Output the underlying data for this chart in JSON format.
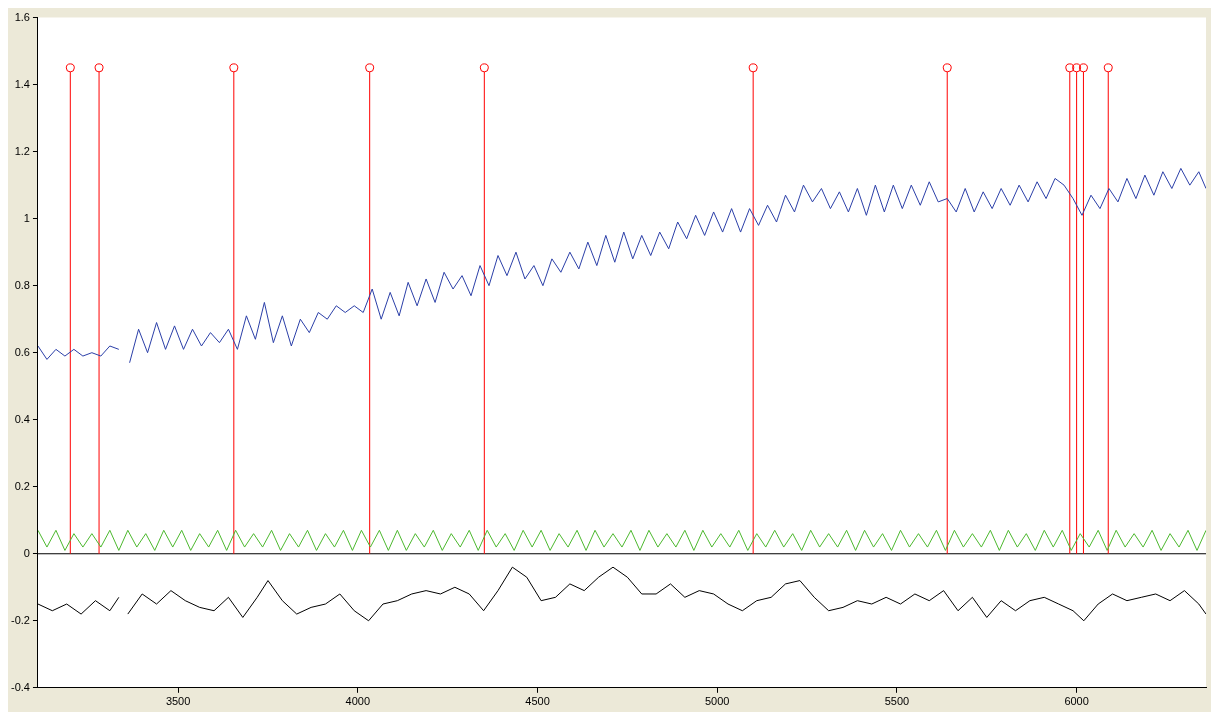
{
  "chart_data": {
    "type": "line",
    "xlim": [
      3110,
      6360
    ],
    "xticks": [
      3500,
      4000,
      4500,
      5000,
      5500,
      6000
    ],
    "ylim": [
      -0.4,
      1.6
    ],
    "yticks": [
      -0.4,
      -0.2,
      0,
      0.2,
      0.4,
      0.6,
      0.8,
      1,
      1.2,
      1.4,
      1.6
    ],
    "grid": false,
    "legend": false,
    "ref_lines": [
      {
        "axis": "y",
        "value": 0,
        "color": "#000000"
      }
    ],
    "series": [
      {
        "color": "#2b3fa8",
        "marker": "none",
        "x": [
          3110,
          3135,
          3160,
          3185,
          3210,
          3235,
          3260,
          3285,
          3310,
          3335,
          3350,
          3365,
          3390,
          3415,
          3440,
          3465,
          3490,
          3515,
          3540,
          3565,
          3590,
          3615,
          3640,
          3665,
          3690,
          3715,
          3740,
          3765,
          3790,
          3815,
          3840,
          3865,
          3890,
          3915,
          3940,
          3965,
          3990,
          4015,
          4040,
          4065,
          4090,
          4115,
          4140,
          4165,
          4190,
          4215,
          4240,
          4265,
          4290,
          4315,
          4340,
          4365,
          4390,
          4415,
          4440,
          4465,
          4490,
          4515,
          4540,
          4565,
          4590,
          4615,
          4640,
          4665,
          4690,
          4715,
          4740,
          4765,
          4790,
          4815,
          4840,
          4865,
          4890,
          4915,
          4940,
          4965,
          4990,
          5015,
          5040,
          5065,
          5090,
          5115,
          5140,
          5165,
          5190,
          5215,
          5240,
          5265,
          5290,
          5315,
          5340,
          5365,
          5390,
          5415,
          5440,
          5465,
          5490,
          5515,
          5540,
          5565,
          5590,
          5615,
          5640,
          5665,
          5690,
          5715,
          5740,
          5765,
          5790,
          5815,
          5840,
          5865,
          5890,
          5915,
          5940,
          5965,
          5990,
          6015,
          6040,
          6065,
          6090,
          6115,
          6140,
          6165,
          6190,
          6215,
          6240,
          6265,
          6290,
          6315,
          6340,
          6360
        ],
        "values": [
          0.62,
          0.58,
          0.61,
          0.59,
          0.61,
          0.59,
          0.6,
          0.59,
          0.62,
          0.61,
          null,
          0.57,
          0.67,
          0.6,
          0.69,
          0.61,
          0.68,
          0.61,
          0.67,
          0.62,
          0.66,
          0.63,
          0.67,
          0.61,
          0.71,
          0.64,
          0.75,
          0.63,
          0.71,
          0.62,
          0.7,
          0.66,
          0.72,
          0.7,
          0.74,
          0.72,
          0.74,
          0.72,
          0.79,
          0.7,
          0.78,
          0.71,
          0.81,
          0.74,
          0.82,
          0.75,
          0.84,
          0.79,
          0.83,
          0.77,
          0.86,
          0.8,
          0.89,
          0.83,
          0.9,
          0.82,
          0.86,
          0.8,
          0.88,
          0.84,
          0.9,
          0.85,
          0.93,
          0.86,
          0.95,
          0.87,
          0.96,
          0.88,
          0.95,
          0.89,
          0.96,
          0.91,
          0.99,
          0.94,
          1.01,
          0.95,
          1.02,
          0.96,
          1.03,
          0.96,
          1.03,
          0.98,
          1.04,
          0.99,
          1.07,
          1.02,
          1.1,
          1.05,
          1.09,
          1.03,
          1.08,
          1.02,
          1.09,
          1.01,
          1.1,
          1.02,
          1.1,
          1.03,
          1.1,
          1.04,
          1.11,
          1.05,
          1.06,
          1.02,
          1.09,
          1.02,
          1.08,
          1.03,
          1.09,
          1.04,
          1.1,
          1.05,
          1.11,
          1.06,
          1.12,
          1.1,
          1.06,
          1.01,
          1.07,
          1.03,
          1.09,
          1.05,
          1.12,
          1.06,
          1.13,
          1.07,
          1.14,
          1.09,
          1.15,
          1.1,
          1.14,
          1.09
        ]
      },
      {
        "color": "#4cb82e",
        "marker": "none",
        "x": [
          3110,
          3135,
          3160,
          3185,
          3210,
          3235,
          3260,
          3285,
          3310,
          3335,
          3360,
          3385,
          3410,
          3435,
          3460,
          3485,
          3510,
          3535,
          3560,
          3585,
          3610,
          3635,
          3660,
          3685,
          3710,
          3735,
          3760,
          3785,
          3810,
          3835,
          3860,
          3885,
          3910,
          3935,
          3960,
          3985,
          4010,
          4035,
          4060,
          4085,
          4110,
          4135,
          4160,
          4185,
          4210,
          4235,
          4260,
          4285,
          4310,
          4335,
          4360,
          4385,
          4410,
          4435,
          4460,
          4485,
          4510,
          4535,
          4560,
          4585,
          4610,
          4635,
          4660,
          4685,
          4710,
          4735,
          4760,
          4785,
          4810,
          4835,
          4860,
          4885,
          4910,
          4935,
          4960,
          4985,
          5010,
          5035,
          5060,
          5085,
          5110,
          5135,
          5160,
          5185,
          5210,
          5235,
          5260,
          5285,
          5310,
          5335,
          5360,
          5385,
          5410,
          5435,
          5460,
          5485,
          5510,
          5535,
          5560,
          5585,
          5610,
          5635,
          5660,
          5685,
          5710,
          5735,
          5760,
          5785,
          5810,
          5835,
          5860,
          5885,
          5910,
          5935,
          5960,
          5985,
          6010,
          6035,
          6060,
          6085,
          6110,
          6135,
          6160,
          6185,
          6210,
          6235,
          6260,
          6285,
          6310,
          6335,
          6360
        ],
        "values": [
          0.07,
          0.02,
          0.07,
          0.01,
          0.06,
          0.02,
          0.06,
          0.02,
          0.07,
          0.01,
          0.07,
          0.02,
          0.06,
          0.01,
          0.07,
          0.02,
          0.07,
          0.01,
          0.06,
          0.02,
          0.07,
          0.01,
          0.07,
          0.02,
          0.06,
          0.02,
          0.07,
          0.01,
          0.06,
          0.02,
          0.07,
          0.01,
          0.06,
          0.02,
          0.07,
          0.01,
          0.07,
          0.02,
          0.07,
          0.01,
          0.07,
          0.01,
          0.06,
          0.02,
          0.07,
          0.01,
          0.06,
          0.02,
          0.07,
          0.01,
          0.07,
          0.02,
          0.06,
          0.01,
          0.07,
          0.02,
          0.07,
          0.01,
          0.06,
          0.02,
          0.07,
          0.01,
          0.07,
          0.02,
          0.06,
          0.02,
          0.07,
          0.01,
          0.07,
          0.02,
          0.06,
          0.02,
          0.07,
          0.01,
          0.07,
          0.02,
          0.06,
          0.02,
          0.07,
          0.01,
          0.06,
          0.02,
          0.07,
          0.02,
          0.06,
          0.01,
          0.07,
          0.02,
          0.06,
          0.02,
          0.07,
          0.01,
          0.07,
          0.02,
          0.06,
          0.01,
          0.07,
          0.02,
          0.06,
          0.02,
          0.07,
          0.01,
          0.07,
          0.02,
          0.06,
          0.02,
          0.07,
          0.01,
          0.07,
          0.02,
          0.06,
          0.01,
          0.07,
          0.02,
          0.07,
          0.01,
          0.06,
          0.02,
          0.07,
          0.01,
          0.07,
          0.02,
          0.06,
          0.02,
          0.07,
          0.01,
          0.06,
          0.02,
          0.07,
          0.01,
          0.07
        ]
      },
      {
        "color": "#000000",
        "marker": "none",
        "x": [
          3110,
          3150,
          3190,
          3230,
          3270,
          3310,
          3335,
          3350,
          3360,
          3400,
          3440,
          3480,
          3520,
          3560,
          3600,
          3640,
          3680,
          3720,
          3750,
          3790,
          3830,
          3870,
          3910,
          3950,
          3990,
          4030,
          4070,
          4110,
          4150,
          4190,
          4230,
          4270,
          4310,
          4350,
          4390,
          4430,
          4470,
          4510,
          4550,
          4590,
          4630,
          4670,
          4710,
          4750,
          4790,
          4830,
          4870,
          4910,
          4950,
          4990,
          5030,
          5070,
          5110,
          5150,
          5190,
          5230,
          5270,
          5310,
          5350,
          5390,
          5430,
          5470,
          5510,
          5550,
          5590,
          5630,
          5670,
          5710,
          5750,
          5790,
          5830,
          5870,
          5910,
          5950,
          5990,
          6020,
          6060,
          6100,
          6140,
          6180,
          6220,
          6260,
          6300,
          6340,
          6360
        ],
        "values": [
          -0.15,
          -0.17,
          -0.15,
          -0.18,
          -0.14,
          -0.17,
          -0.13,
          null,
          -0.18,
          -0.12,
          -0.15,
          -0.11,
          -0.14,
          -0.16,
          -0.17,
          -0.13,
          -0.19,
          -0.13,
          -0.08,
          -0.14,
          -0.18,
          -0.16,
          -0.15,
          -0.12,
          -0.17,
          -0.2,
          -0.15,
          -0.14,
          -0.12,
          -0.11,
          -0.12,
          -0.1,
          -0.12,
          -0.17,
          -0.11,
          -0.04,
          -0.07,
          -0.14,
          -0.13,
          -0.09,
          -0.11,
          -0.07,
          -0.04,
          -0.07,
          -0.12,
          -0.12,
          -0.09,
          -0.13,
          -0.11,
          -0.12,
          -0.15,
          -0.17,
          -0.14,
          -0.13,
          -0.09,
          -0.08,
          -0.13,
          -0.17,
          -0.16,
          -0.14,
          -0.15,
          -0.13,
          -0.15,
          -0.12,
          -0.14,
          -0.11,
          -0.17,
          -0.13,
          -0.19,
          -0.14,
          -0.17,
          -0.14,
          -0.13,
          -0.15,
          -0.17,
          -0.2,
          -0.15,
          -0.12,
          -0.14,
          -0.13,
          -0.12,
          -0.14,
          -0.11,
          -0.15,
          -0.18
        ]
      },
      {
        "type": "lollipop",
        "color": "#ff0000",
        "marker": "circle",
        "x": [
          3200,
          3280,
          3655,
          4033,
          4352,
          5100,
          5640,
          5981,
          6000,
          6019,
          6088
        ],
        "values": [
          1.45,
          1.45,
          1.45,
          1.45,
          1.45,
          1.45,
          1.45,
          1.45,
          1.45,
          1.45,
          1.45
        ]
      }
    ]
  }
}
